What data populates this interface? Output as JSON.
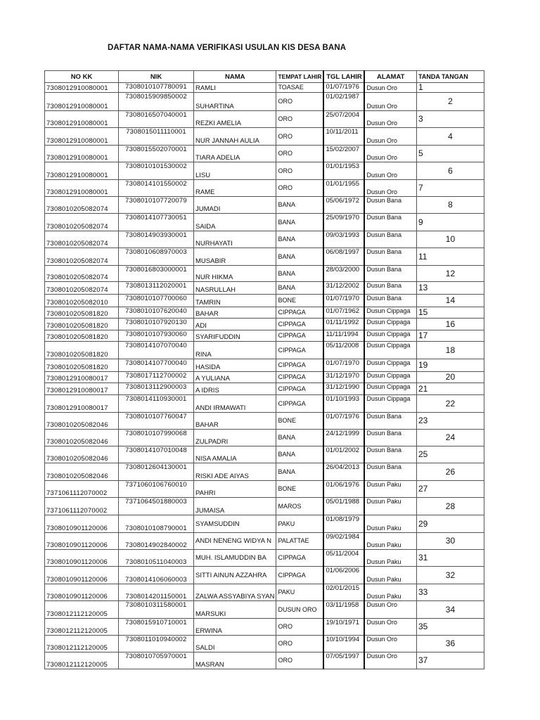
{
  "title": "DAFTAR NAMA-NAMA VERIFIKASI USULAN KIS DESA BANA",
  "headers": {
    "no_kk": "NO KK",
    "nik": "NIK",
    "nama": "NAMA",
    "tempat": "TEMPAT LAHIR",
    "tgl": "TGL LAHIR",
    "alamat": "ALAMAT",
    "ttd": "TANDA TANGAN"
  },
  "rows": [
    {
      "no_kk": "7308012910080001",
      "nik": "7308010107780091",
      "nama": "RAMLI",
      "tempat": "TOASAE",
      "tgl": "01/07/1976",
      "alamat": "Dusun Oro",
      "ttd": "1"
    },
    {
      "no_kk": "7308012910080001",
      "nik": "7308015909850002",
      "nama": "SUHARTINA",
      "tempat": "ORO",
      "tgl": "01/02/1987",
      "alamat": "Dusun Oro",
      "ttd": "2"
    },
    {
      "no_kk": "7308012910080001",
      "nik": "7308016507040001",
      "nama": "REZKI AMELIA",
      "tempat": "ORO",
      "tgl": "25/07/2004",
      "alamat": "Dusun Oro",
      "ttd": "3"
    },
    {
      "no_kk": "7308012910080001",
      "nik": "7308015011110001",
      "nama": "NUR JANNAH AULIA",
      "tempat": "ORO",
      "tgl": "10/11/2011",
      "alamat": "Dusun Oro",
      "ttd": "4"
    },
    {
      "no_kk": "7308012910080001",
      "nik": "7308015502070001",
      "nama": "TIARA ADELIA",
      "tempat": "ORO",
      "tgl": "15/02/2007",
      "alamat": "Dusun Oro",
      "ttd": "5"
    },
    {
      "no_kk": "7308012910080001",
      "nik": "7308010101530002",
      "nama": "LISU",
      "tempat": "ORO",
      "tgl": "01/01/1953",
      "alamat": "Dusun Oro",
      "ttd": "6"
    },
    {
      "no_kk": "7308012910080001",
      "nik": "7308014101550002",
      "nama": "RAME",
      "tempat": "ORO",
      "tgl": "01/01/1955",
      "alamat": "Dusun Oro",
      "ttd": "7"
    },
    {
      "no_kk": "7308010205082074",
      "nik": "7308010107720079",
      "nama": "JUMADI",
      "tempat": "BANA",
      "tgl": "05/06/1972",
      "alamat": "Dusun Bana",
      "ttd": "8"
    },
    {
      "no_kk": "7308010205082074",
      "nik": "7308014107730051",
      "nama": "SAIDA",
      "tempat": "BANA",
      "tgl": "25/09/1970",
      "alamat": "Dusun Bana",
      "ttd": "9"
    },
    {
      "no_kk": "7308010205082074",
      "nik": "7308014903930001",
      "nama": "NURHAYATI",
      "tempat": "BANA",
      "tgl": "09/03/1993",
      "alamat": "Dusun Bana",
      "ttd": "10"
    },
    {
      "no_kk": "7308010205082074",
      "nik": "7308010608970003",
      "nama": "MUSABIR",
      "tempat": "BANA",
      "tgl": "06/08/1997",
      "alamat": "Dusun Bana",
      "ttd": "11"
    },
    {
      "no_kk": "7308010205082074",
      "nik": "7308016803000001",
      "nama": "NUR HIKMA",
      "tempat": "BANA",
      "tgl": "28/03/2000",
      "alamat": "Dusun Bana",
      "ttd": "12"
    },
    {
      "no_kk": "7308010205082074",
      "nik": "7308013112020001",
      "nama": "NASRULLAH",
      "tempat": "BANA",
      "tgl": "31/12/2002",
      "alamat": "Dusun Bana",
      "ttd": "13"
    },
    {
      "no_kk": "7308010205082010",
      "nik": "7308010107700060",
      "nama": "TAMRIN",
      "tempat": "BONE",
      "tgl": "01/07/1970",
      "alamat": "Dusun Bana",
      "ttd": "14"
    },
    {
      "no_kk": "7308010205081820",
      "nik": "7308010107620040",
      "nama": "BAHAR",
      "tempat": "CIPPAGA",
      "tgl": "01/07/1962",
      "alamat": "Dusun Cippaga",
      "ttd": "15"
    },
    {
      "no_kk": "7308010205081820",
      "nik": "7308010107920130",
      "nama": "ADI",
      "tempat": "CIPPAGA",
      "tgl": "01/11/1992",
      "alamat": "Dusun Cippaga",
      "ttd": "16"
    },
    {
      "no_kk": "7308010205081820",
      "nik": "7308010107930060",
      "nama": "SYARIFUDDIN",
      "tempat": "CIPPAGA",
      "tgl": "11/11/1994",
      "alamat": "Dusun Cippaga",
      "ttd": "17"
    },
    {
      "no_kk": "7308010205081820",
      "nik": "7308014107070040",
      "nama": "RINA",
      "tempat": "CIPPAGA",
      "tgl": "05/11/2008",
      "alamat": "Dusun Cippaga",
      "ttd": "18"
    },
    {
      "no_kk": "7308010205081820",
      "nik": "7308014107700040",
      "nama": "HASIDA",
      "tempat": "CIPPAGA",
      "tgl": "01/07/1970",
      "alamat": "Dusun Cippaga",
      "ttd": "19"
    },
    {
      "no_kk": "7308012910080017",
      "nik": "7308017112700002",
      "nama": "A YULIANA",
      "tempat": "CIPPAGA",
      "tgl": "31/12/1970",
      "alamat": "Dusun Cippaga",
      "ttd": "20"
    },
    {
      "no_kk": "7308012910080017",
      "nik": "7308013112900003",
      "nama": "A IDRIS",
      "tempat": "CIPPAGA",
      "tgl": "31/12/1990",
      "alamat": "Dusun Cippaga",
      "ttd": "21"
    },
    {
      "no_kk": "7308012910080017",
      "nik": "7308014110930001",
      "nama": "ANDI IRMAWATI",
      "tempat": "CIPPAGA",
      "tgl": "01/10/1993",
      "alamat": "Dusun Cippaga",
      "ttd": "22"
    },
    {
      "no_kk": "7308010205082046",
      "nik": "7308010107760047",
      "nama": "BAHAR",
      "tempat": "BONE",
      "tgl": "01/07/1976",
      "alamat": "Dusun Bana",
      "ttd": "23"
    },
    {
      "no_kk": "7308010205082046",
      "nik": "7308010107990068",
      "nama": "ZULPADRI",
      "tempat": "BANA",
      "tgl": "24/12/1999",
      "alamat": "Dusun Bana",
      "ttd": "24"
    },
    {
      "no_kk": "7308010205082046",
      "nik": "7308014107010048",
      "nama": "NISA AMALIA",
      "tempat": "BANA",
      "tgl": "01/01/2002",
      "alamat": "Dusun Bana",
      "ttd": "25"
    },
    {
      "no_kk": "7308010205082046",
      "nik": "7308012604130001",
      "nama": "RISKI ADE AIYAS",
      "tempat": "BANA",
      "tgl": "26/04/2013",
      "alamat": "Dusun Bana",
      "ttd": "26"
    },
    {
      "no_kk": "7371061112070002",
      "nik": "7371060106760010",
      "nama": "PAHRI",
      "tempat": "BONE",
      "tgl": "01/06/1976",
      "alamat": "Dusun Paku",
      "ttd": "27"
    },
    {
      "no_kk": "7371061112070002",
      "nik": "7371064501880003",
      "nama": "JUMAISA",
      "tempat": "MAROS",
      "tgl": "05/01/1988",
      "alamat": "Dusun Paku",
      "ttd": "28"
    },
    {
      "no_kk": "7308010901120006",
      "nik": "7308010108790001",
      "nama": "SYAMSUDDIN",
      "tempat": "PAKU",
      "tgl": "01/08/1979",
      "alamat": "Dusun Paku",
      "ttd": "29"
    },
    {
      "no_kk": "7308010901120006",
      "nik": "7308014902840002",
      "nama": "ANDI NENENG WIDYA N",
      "tempat": "PALATTAE",
      "tgl": "09/02/1984",
      "alamat": "Dusun Paku",
      "ttd": "30"
    },
    {
      "no_kk": "7308010901120006",
      "nik": "7308010511040003",
      "nama": "MUH. ISLAMUDDIN BA",
      "tempat": "CIPPAGA",
      "tgl": "05/11/2004",
      "alamat": "Dusun Paku",
      "ttd": "31"
    },
    {
      "no_kk": "7308010901120006",
      "nik": "7308014106060003",
      "nama": "SITTI AINUN AZZAHRA",
      "tempat": "CIPPAGA",
      "tgl": "01/06/2006",
      "alamat": "Dusun Paku",
      "ttd": "32"
    },
    {
      "no_kk": "7308010901120006",
      "nik": "7308014201150001",
      "nama": "ZALWA ASSYABIYA SYAN",
      "tempat": "PAKU",
      "tgl": "02/01/2015",
      "alamat": "Dusun Paku",
      "ttd": "33"
    },
    {
      "no_kk": "7308012112120005",
      "nik": "7308010311580001",
      "nama": "MARSUKI",
      "tempat": "DUSUN ORO",
      "tgl": "03/11/1958",
      "alamat": "Dusun Oro",
      "ttd": "34"
    },
    {
      "no_kk": "7308012112120005",
      "nik": "7308015910710001",
      "nama": "ERWINA",
      "tempat": "ORO",
      "tgl": "19/10/1971",
      "alamat": "Dusun Oro",
      "ttd": "35"
    },
    {
      "no_kk": "7308012112120005",
      "nik": "7308011010940002",
      "nama": "SALDI",
      "tempat": "ORO",
      "tgl": "10/10/1994",
      "alamat": "Dusun Oro",
      "ttd": "36"
    },
    {
      "no_kk": "7308012112120005",
      "nik": "7308010705970001",
      "nama": "MASRAN",
      "tempat": "ORO",
      "tgl": "07/05/1997",
      "alamat": "Dusun Oro",
      "ttd": "37"
    }
  ]
}
